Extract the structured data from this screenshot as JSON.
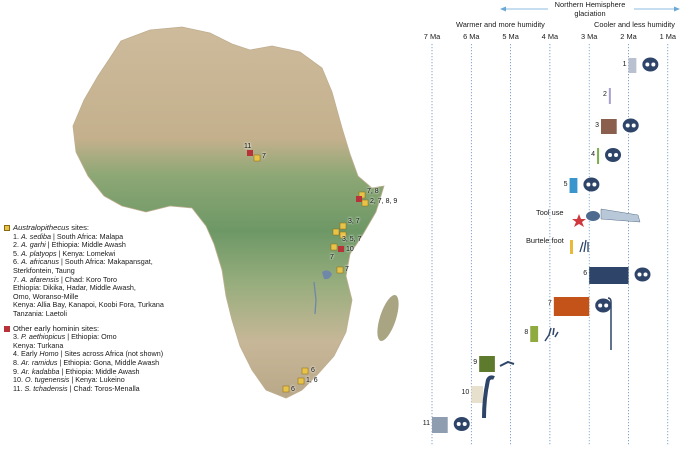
{
  "header": {
    "glaciation_line1": "Northern Hemisphere",
    "glaciation_line2": "glaciation",
    "warmer": "Warmer and more humidity",
    "cooler": "Cooler and less humidity"
  },
  "axis": {
    "ticks": [
      "7 Ma",
      "6 Ma",
      "5 Ma",
      "4 Ma",
      "3 Ma",
      "2 Ma",
      "1 Ma"
    ],
    "values": [
      7,
      6,
      5,
      4,
      3,
      2,
      1
    ]
  },
  "legend": {
    "australopithecus_heading_italic": "Australopithecus",
    "australopithecus_heading_rest": " sites:",
    "aus_items": [
      {
        "num": "1. ",
        "name": "A. sediba",
        "rest": " | South Africa: Malapa"
      },
      {
        "num": "2. ",
        "name": "A. garhi",
        "rest": " | Ethiopia: Middle Awash"
      },
      {
        "num": "5. ",
        "name": "A. platyops",
        "rest": " | Kenya: Lomekwi"
      },
      {
        "num": "6. ",
        "name": "A. africanus",
        "rest": " | South Africa: Makapansgat,"
      },
      {
        "num": "",
        "name": "",
        "rest": "Sterkfontein, Taung"
      },
      {
        "num": "7. ",
        "name": "A. afarensis",
        "rest": " | Chad: Koro Toro"
      },
      {
        "num": "",
        "name": "",
        "rest": "Ethiopia: Dikika, Hadar, Middle Awash,"
      },
      {
        "num": "",
        "name": "",
        "rest": "Omo, Woranso-Mille"
      },
      {
        "num": "",
        "name": "",
        "rest": "Kenya: Allia Bay, Kanapoi, Koobi Fora, Turkana"
      },
      {
        "num": "",
        "name": "",
        "rest": "Tanzania: Laetoli"
      }
    ],
    "other_heading": "Other early hominin sites:",
    "other_items": [
      {
        "num": "3. ",
        "name": "P. aethiopicus",
        "rest": " | Ethiopia: Omo"
      },
      {
        "num": "",
        "name": "",
        "rest": "Kenya: Turkana"
      },
      {
        "num": "4. ",
        "name": "",
        "rest": "Early ",
        "name2": "Homo",
        "rest2": " | Sites across Africa (not shown)"
      },
      {
        "num": "8. ",
        "name": "Ar. ramidus",
        "rest": " | Ethiopia: Gona, Middle Awash"
      },
      {
        "num": "9. ",
        "name": "Ar. kadabba",
        "rest": " | Ethiopia: Middle Awash"
      },
      {
        "num": "10. ",
        "name": "O. tugenensis",
        "rest": " | Kenya: Lukeino"
      },
      {
        "num": "11. ",
        "name": "S. tchadensis",
        "rest": " | Chad: Toros-Menalla"
      }
    ]
  },
  "map_labels": {
    "chad_11": "11",
    "chad_7": "7",
    "ethiopia_a": "7, 8",
    "ethiopia_b": "2, 7, 8, 9",
    "kenya_a": "3, 7",
    "kenya_b": "3, 5, 7",
    "kenya_10": "10",
    "kenya_7": "7",
    "tanzania_7": "7",
    "sa_6": "6",
    "sa_16": "1, 6",
    "sa_6b": "6"
  },
  "annotations": {
    "tool_use": "Tool use",
    "burtele_foot": "Burtele foot"
  },
  "chart_data": {
    "type": "bar",
    "title": "",
    "xlabel": "",
    "x_unit": "Ma",
    "xlim": [
      7,
      1
    ],
    "series": [
      {
        "label": "1",
        "start": 2.0,
        "end": 1.8,
        "color": "#b9c0cf"
      },
      {
        "label": "2",
        "start": 2.5,
        "end": 2.45,
        "color": "#a99fd0"
      },
      {
        "label": "3",
        "start": 2.7,
        "end": 2.3,
        "color": "#8a5f4e"
      },
      {
        "label": "4",
        "start": 2.8,
        "end": 2.75,
        "color": "#7cae4a"
      },
      {
        "label": "5",
        "start": 3.5,
        "end": 3.3,
        "color": "#3a95cd"
      },
      {
        "label": "6",
        "start": 3.0,
        "end": 2.0,
        "color": "#2e4569"
      },
      {
        "label": "7",
        "start": 3.9,
        "end": 3.0,
        "color": "#c45319"
      },
      {
        "label": "8",
        "start": 4.5,
        "end": 4.3,
        "color": "#8fab3e"
      },
      {
        "label": "9",
        "start": 5.8,
        "end": 5.4,
        "color": "#5e7a2c"
      },
      {
        "label": "10",
        "start": 6.0,
        "end": 5.7,
        "color": "#e6e0cc"
      },
      {
        "label": "11",
        "start": 7.0,
        "end": 6.6,
        "color": "#8e9db0"
      }
    ],
    "markers": [
      {
        "label": "Tool use",
        "at": 3.3
      },
      {
        "label": "Burtele foot",
        "at": 3.4
      }
    ]
  }
}
